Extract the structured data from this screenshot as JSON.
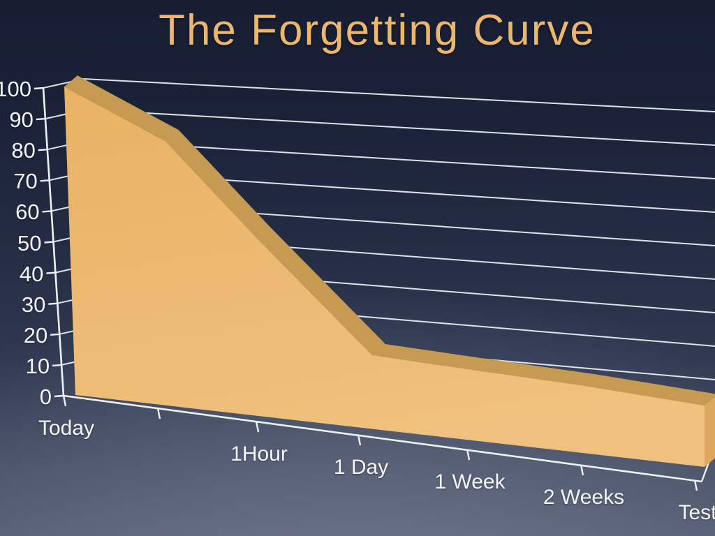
{
  "slide": {
    "title": "The Forgetting Curve"
  },
  "colors": {
    "background_top": "#1a2136",
    "background_bottom": "#5a6074",
    "title_text": "#ecb76c",
    "axis_and_grid": "#eef1f6",
    "tick_label_text": "#f4f6f9",
    "area_front": "#ecba72",
    "area_front_light": "#f0c17e",
    "area_front_dark": "#e6ae62",
    "area_top_bevel": "#c79a52",
    "area_right_side": "#dda85e"
  },
  "chart_data": {
    "type": "area",
    "style": "3d-perspective-extruded-area",
    "title": "The Forgetting Curve",
    "categories": [
      "Today",
      "",
      "1Hour",
      "1 Day",
      "1 Week",
      "2 Weeks",
      "Test"
    ],
    "values": [
      100,
      86,
      58,
      24,
      23,
      22,
      20
    ],
    "values_note": "estimated from gridlines; second x tick is unlabeled on the slide",
    "xlabel": "",
    "ylabel": "",
    "ylim": [
      0,
      100
    ],
    "yticks": [
      0,
      10,
      20,
      30,
      40,
      50,
      60,
      70,
      80,
      90,
      100
    ],
    "grid": true,
    "legend_position": "none"
  }
}
